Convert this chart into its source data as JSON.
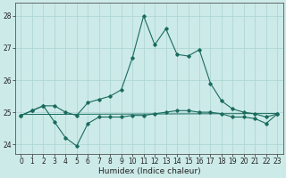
{
  "xlabel": "Humidex (Indice chaleur)",
  "bg_color": "#cceae8",
  "grid_color": "#aad4d0",
  "line_color": "#1a6b5e",
  "xlim": [
    -0.5,
    23.5
  ],
  "ylim": [
    23.7,
    28.4
  ],
  "yticks": [
    24,
    25,
    26,
    27,
    28
  ],
  "xticks": [
    0,
    1,
    2,
    3,
    4,
    5,
    6,
    7,
    8,
    9,
    10,
    11,
    12,
    13,
    14,
    15,
    16,
    17,
    18,
    19,
    20,
    21,
    22,
    23
  ],
  "line1_x": [
    0,
    1,
    2,
    3,
    4,
    5,
    6,
    7,
    8,
    9,
    10,
    11,
    12,
    13,
    14,
    15,
    16,
    17,
    18,
    19,
    20,
    21,
    22,
    23
  ],
  "line1_y": [
    24.9,
    25.05,
    25.2,
    25.2,
    25.0,
    24.9,
    25.3,
    25.4,
    25.5,
    25.7,
    26.7,
    28.0,
    27.1,
    27.6,
    26.8,
    26.75,
    26.95,
    25.9,
    25.35,
    25.1,
    25.0,
    24.95,
    24.85,
    24.95
  ],
  "line2_x": [
    0,
    1,
    2,
    3,
    4,
    5,
    6,
    7,
    8,
    9,
    10,
    11,
    12,
    13,
    14,
    15,
    16,
    17,
    18,
    19,
    20,
    21,
    22,
    23
  ],
  "line2_y": [
    24.9,
    25.05,
    25.2,
    24.7,
    24.2,
    23.95,
    24.65,
    24.85,
    24.85,
    24.85,
    24.9,
    24.9,
    24.95,
    25.0,
    25.05,
    25.05,
    25.0,
    25.0,
    24.95,
    24.85,
    24.85,
    24.8,
    24.65,
    24.95
  ],
  "trend_x": [
    0,
    23
  ],
  "trend_y": [
    24.93,
    24.96
  ]
}
